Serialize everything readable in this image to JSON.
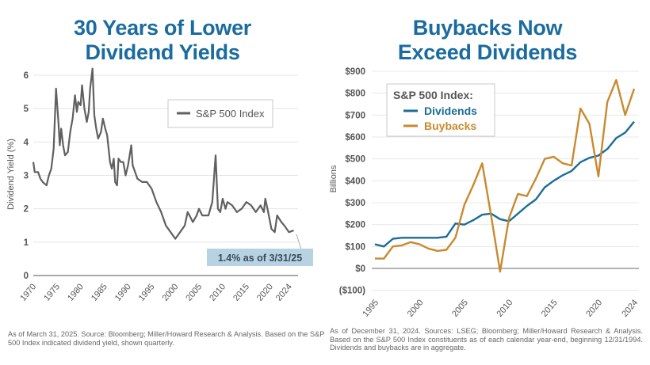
{
  "chart_data": [
    {
      "type": "line",
      "title": "30 Years of Lower Dividend Yields",
      "title_lines": [
        "30 Years of Lower",
        "Dividend Yields"
      ],
      "xlabel": "",
      "ylabel": "Dividend Yield (%)",
      "ylim": [
        0,
        6.2
      ],
      "xlim": [
        1970,
        2025.25
      ],
      "yticks": [
        "0",
        "1",
        "2",
        "3",
        "4",
        "5",
        "6"
      ],
      "xticks": [
        "1970",
        "1975",
        "1980",
        "1985",
        "1990",
        "1995",
        "2000",
        "2005",
        "2010",
        "2015",
        "2020",
        "2024"
      ],
      "grid": true,
      "legend": {
        "position": "top-right",
        "entries": [
          "S&P 500 Index"
        ]
      },
      "annotation": "1.4% as of 3/31/25",
      "footnote": "As of March 31, 2025. Source: Bloomberg; Miller/Howard Research & Analysis. Based on the S&P 500 Index indicated dividend yield, shown quarterly.",
      "colors": {
        "line": "#606060",
        "annotation_bg": "#b7d3e3",
        "title": "#1b6c9e"
      },
      "series": [
        {
          "name": "S&P 500 Index",
          "x": [
            1970.0,
            1970.3,
            1971.0,
            1971.5,
            1972.0,
            1972.8,
            1973.3,
            1973.8,
            1974.3,
            1974.8,
            1975.3,
            1975.6,
            1975.9,
            1976.3,
            1976.7,
            1977.3,
            1977.8,
            1978.3,
            1978.8,
            1979.2,
            1979.5,
            1980.0,
            1980.3,
            1980.8,
            1981.3,
            1981.7,
            1982.0,
            1982.5,
            1982.9,
            1983.3,
            1983.7,
            1984.3,
            1984.7,
            1985.2,
            1985.6,
            1986.2,
            1986.6,
            1987.0,
            1987.3,
            1987.7,
            1988.0,
            1988.5,
            1989.0,
            1989.5,
            1990.0,
            1990.7,
            1991.0,
            1991.5,
            1992.0,
            1993.0,
            1994.0,
            1995.0,
            1996.0,
            1997.0,
            1998.0,
            1999.0,
            2000.0,
            2001.0,
            2002.0,
            2002.6,
            2003.0,
            2003.7,
            2004.5,
            2005.0,
            2005.7,
            2006.5,
            2007.0,
            2007.8,
            2008.5,
            2009.0,
            2009.5,
            2010.0,
            2010.6,
            2011.0,
            2012.0,
            2013.0,
            2014.0,
            2015.0,
            2016.0,
            2017.0,
            2018.0,
            2018.7,
            2019.0,
            2019.6,
            2020.3,
            2021.0,
            2021.5,
            2022.4,
            2023.0,
            2024.0,
            2025.0
          ],
          "y": [
            3.4,
            3.1,
            3.1,
            2.9,
            2.8,
            2.7,
            3.0,
            3.2,
            3.8,
            5.6,
            4.6,
            3.9,
            4.4,
            3.9,
            3.6,
            3.7,
            4.3,
            4.7,
            5.4,
            4.9,
            5.2,
            5.1,
            5.7,
            5.0,
            4.6,
            4.9,
            5.6,
            6.2,
            4.8,
            4.4,
            4.1,
            4.3,
            4.7,
            4.4,
            4.2,
            3.4,
            3.2,
            3.5,
            2.8,
            2.7,
            3.5,
            3.4,
            3.4,
            3.0,
            3.3,
            3.9,
            3.3,
            3.1,
            2.9,
            2.8,
            2.8,
            2.6,
            2.2,
            1.9,
            1.5,
            1.3,
            1.1,
            1.3,
            1.5,
            1.9,
            1.8,
            1.6,
            1.8,
            2.0,
            1.8,
            1.8,
            1.8,
            2.2,
            3.6,
            2.0,
            1.9,
            2.3,
            2.0,
            2.2,
            2.1,
            1.9,
            2.0,
            2.2,
            2.1,
            1.9,
            2.1,
            1.9,
            2.3,
            1.9,
            1.4,
            1.3,
            1.8,
            1.6,
            1.5,
            1.3,
            1.35
          ]
        }
      ]
    },
    {
      "type": "line",
      "title": "Buybacks Now Exceed Dividends",
      "title_lines": [
        "Buybacks Now",
        "Exceed Dividends"
      ],
      "xlabel": "",
      "ylabel": "Billions",
      "ylim": [
        -100,
        900
      ],
      "yticks": [
        "($100)",
        "$0",
        "$100",
        "$200",
        "$300",
        "$400",
        "$500",
        "$600",
        "$700",
        "$800",
        "$900"
      ],
      "xticks": [
        "1995",
        "2000",
        "2005",
        "2010",
        "2015",
        "2020",
        "2024"
      ],
      "grid": true,
      "legend": {
        "position": "top-left",
        "title": "S&P 500 Index:",
        "entries": [
          "Dividends",
          "Buybacks"
        ]
      },
      "footnote": "As of December 31, 2024. Sources: LSEG; Bloomberg; Miller/Howard Research & Analysis. Based on the S&P 500 Index constituents as of each calendar year-end, beginning 12/31/1994. Dividends and buybacks are in aggregate.",
      "x": [
        1995,
        1996,
        1997,
        1998,
        1999,
        2000,
        2001,
        2002,
        2003,
        2004,
        2005,
        2006,
        2007,
        2008,
        2009,
        2010,
        2011,
        2012,
        2013,
        2014,
        2015,
        2016,
        2017,
        2018,
        2019,
        2020,
        2021,
        2022,
        2023,
        2024
      ],
      "series": [
        {
          "name": "Dividends",
          "color": "#1a6d96",
          "values": [
            110,
            100,
            135,
            140,
            140,
            140,
            140,
            140,
            145,
            205,
            200,
            220,
            245,
            250,
            225,
            215,
            250,
            285,
            315,
            370,
            400,
            425,
            445,
            485,
            505,
            515,
            545,
            595,
            620,
            670
          ]
        },
        {
          "name": "Buybacks",
          "color": "#c88a2e",
          "values": [
            45,
            45,
            100,
            105,
            120,
            110,
            90,
            80,
            85,
            140,
            290,
            380,
            480,
            240,
            -15,
            230,
            340,
            330,
            410,
            500,
            510,
            480,
            470,
            730,
            660,
            420,
            760,
            860,
            700,
            820
          ]
        }
      ]
    }
  ]
}
